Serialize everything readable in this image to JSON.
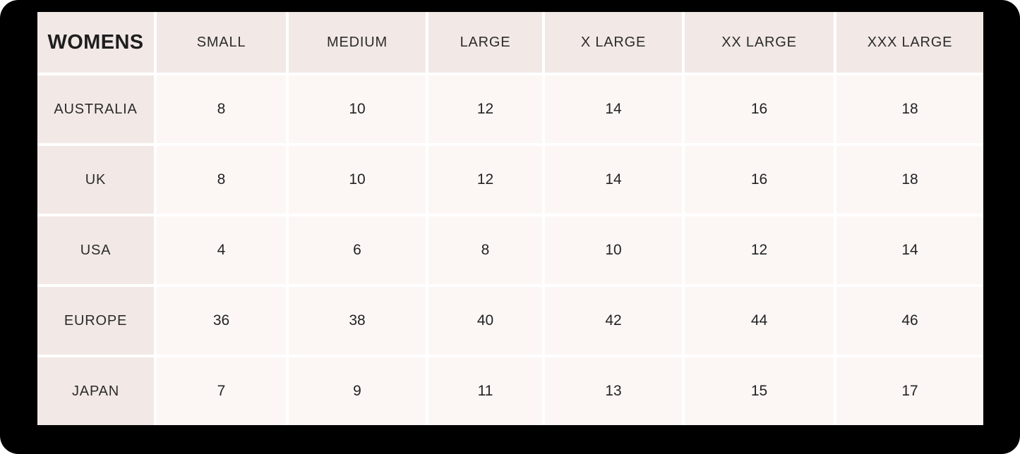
{
  "chart_data": {
    "type": "table",
    "title": "WOMENS",
    "columns": [
      "SMALL",
      "MEDIUM",
      "LARGE",
      "X LARGE",
      "XX LARGE",
      "XXX LARGE"
    ],
    "rows": [
      {
        "region": "AUSTRALIA",
        "values": [
          "8",
          "10",
          "12",
          "14",
          "16",
          "18"
        ]
      },
      {
        "region": "UK",
        "values": [
          "8",
          "10",
          "12",
          "14",
          "16",
          "18"
        ]
      },
      {
        "region": "USA",
        "values": [
          "4",
          "6",
          "8",
          "10",
          "12",
          "14"
        ]
      },
      {
        "region": "EUROPE",
        "values": [
          "36",
          "38",
          "40",
          "42",
          "44",
          "46"
        ]
      },
      {
        "region": "JAPAN",
        "values": [
          "7",
          "9",
          "11",
          "13",
          "15",
          "17"
        ]
      }
    ],
    "layout": {
      "legend": "none",
      "grid": "white 4px separators",
      "header_bg": "#f2e9e6",
      "label_bg": "#f2e9e6",
      "cell_bg": "#fcf7f5",
      "text_color": "#2b2b2b",
      "surround_color": "#000000"
    }
  }
}
